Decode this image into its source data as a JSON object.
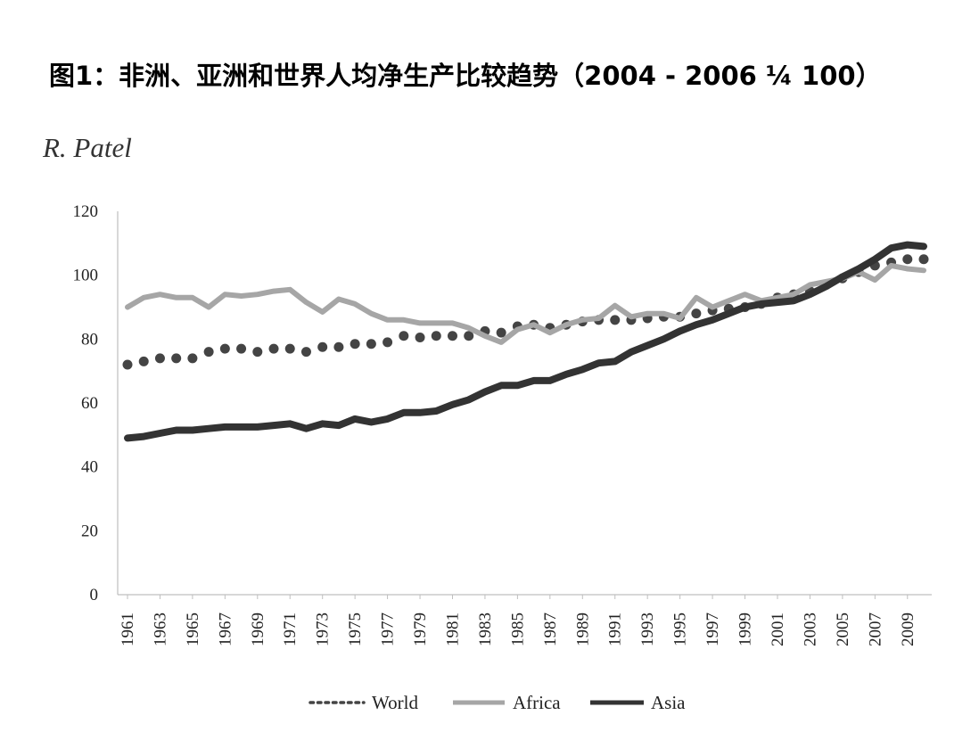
{
  "title": "图1：非洲、亚洲和世界人均净生产比较趋势（2004 - 2006 ¼ 100）",
  "author": "R. Patel",
  "chart_data": {
    "type": "line",
    "title": "",
    "xlabel": "",
    "ylabel": "",
    "ylim": [
      0,
      120
    ],
    "yticks": [
      0,
      20,
      40,
      60,
      80,
      100,
      120
    ],
    "xticks": [
      "1961",
      "1963",
      "1965",
      "1967",
      "1969",
      "1971",
      "1973",
      "1975",
      "1977",
      "1979",
      "1981",
      "1983",
      "1985",
      "1987",
      "1989",
      "1991",
      "1993",
      "1995",
      "1997",
      "1999",
      "2001",
      "2003",
      "2005",
      "2007",
      "2009"
    ],
    "x": [
      1961,
      1962,
      1963,
      1964,
      1965,
      1966,
      1967,
      1968,
      1969,
      1970,
      1971,
      1972,
      1973,
      1974,
      1975,
      1976,
      1977,
      1978,
      1979,
      1980,
      1981,
      1982,
      1983,
      1984,
      1985,
      1986,
      1987,
      1988,
      1989,
      1990,
      1991,
      1992,
      1993,
      1994,
      1995,
      1996,
      1997,
      1998,
      1999,
      2000,
      2001,
      2002,
      2003,
      2004,
      2005,
      2006,
      2007,
      2008,
      2009,
      2010
    ],
    "legend_position": "bottom",
    "grid": false,
    "series": [
      {
        "name": "World",
        "style": "dotted",
        "color": "#444444",
        "values": [
          72,
          73,
          74,
          74,
          74,
          76,
          77,
          77,
          76,
          77,
          77,
          76,
          77.5,
          77.5,
          78.5,
          78.5,
          79,
          81,
          80.5,
          81,
          81,
          81,
          82.5,
          82,
          84,
          84.5,
          83.5,
          84.5,
          85.5,
          86,
          86,
          86,
          86.5,
          87,
          87,
          88,
          89,
          89.5,
          90,
          91,
          93,
          94,
          95,
          97,
          99,
          101,
          103,
          104,
          105,
          105
        ]
      },
      {
        "name": "Africa",
        "style": "solid",
        "color": "#a6a6a6",
        "values": [
          90,
          93,
          94,
          93,
          93,
          90,
          94,
          93.5,
          94,
          95,
          95.5,
          91.5,
          88.5,
          92.5,
          91,
          88,
          86,
          86,
          85,
          85,
          85,
          83.5,
          81,
          79,
          83,
          84.5,
          82,
          84.5,
          86,
          86.5,
          90.5,
          87,
          88,
          88,
          86.5,
          93,
          90,
          92,
          94,
          92,
          93,
          94,
          97,
          98,
          99,
          101,
          98.5,
          103,
          102,
          101.5
        ]
      },
      {
        "name": "Asia",
        "style": "solid",
        "color": "#333333",
        "values": [
          49,
          49.5,
          50.5,
          51.5,
          51.5,
          52,
          52.5,
          52.5,
          52.5,
          53,
          53.5,
          52,
          53.5,
          53,
          55,
          54,
          55,
          57,
          57,
          57.5,
          59.5,
          61,
          63.5,
          65.5,
          65.5,
          67,
          67,
          69,
          70.5,
          72.5,
          73,
          76,
          78,
          80,
          82.5,
          84.5,
          86,
          88,
          90,
          91,
          91.5,
          92,
          94,
          96.5,
          99.5,
          102,
          105,
          108.5,
          109.5,
          109
        ]
      }
    ]
  }
}
